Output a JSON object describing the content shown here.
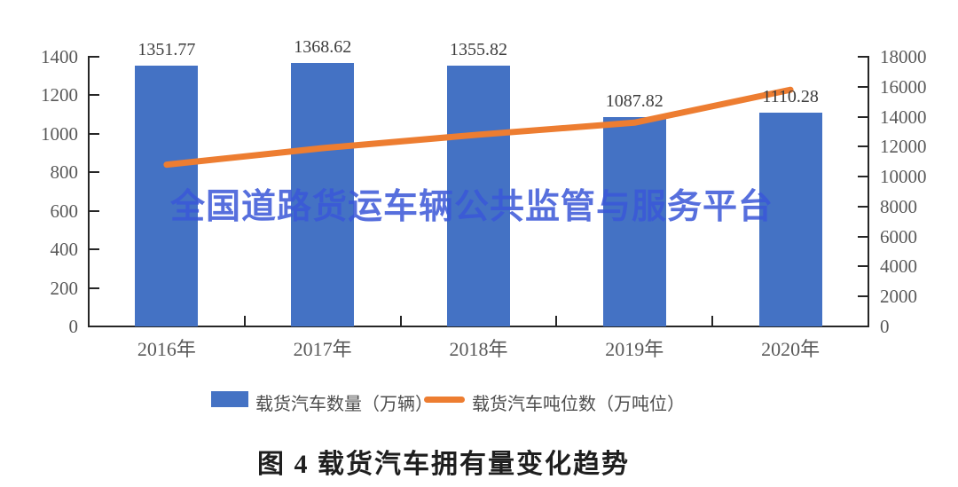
{
  "watermark": {
    "text": "全国道路货运车辆公共监管与服务平台",
    "color": "#3A57D8"
  },
  "caption": "图 4  载货汽车拥有量变化趋势",
  "legend": [
    {
      "label": "载货汽车数量（万辆）",
      "marker": "bar-swatch",
      "color": "#4472C4"
    },
    {
      "label": "载货汽车吨位数（万吨位）",
      "marker": "line-swatch",
      "color": "#ED7D31"
    }
  ],
  "colors": {
    "bar": "#4472C4",
    "line": "#ED7D31",
    "axis": "#262626",
    "axis_text": "#595959",
    "value_text": "#3d3d3d"
  },
  "chart_data": {
    "type": "bar",
    "subtype": "bar+line dual axis",
    "title": "图 4  载货汽车拥有量变化趋势",
    "categories": [
      "2016年",
      "2017年",
      "2018年",
      "2019年",
      "2020年"
    ],
    "series": [
      {
        "name": "载货汽车数量（万辆）",
        "type": "bar",
        "axis": "left",
        "color": "#4472C4",
        "values": [
          1351.77,
          1368.62,
          1355.82,
          1087.82,
          1110.28
        ],
        "data_labels": [
          "1351.77",
          "1368.62",
          "1355.82",
          "1087.82",
          "1110.28"
        ]
      },
      {
        "name": "载货汽车吨位数（万吨位）",
        "type": "line",
        "axis": "right",
        "color": "#ED7D31",
        "estimated": true,
        "values": [
          10800,
          11900,
          12800,
          13600,
          15800
        ]
      }
    ],
    "left_axis": {
      "min": 0,
      "max": 1400,
      "step": 200,
      "ticks": [
        0,
        200,
        400,
        600,
        800,
        1000,
        1200,
        1400
      ]
    },
    "right_axis": {
      "min": 0,
      "max": 18000,
      "step": 2000,
      "ticks": [
        0,
        2000,
        4000,
        6000,
        8000,
        10000,
        12000,
        14000,
        16000,
        18000
      ]
    },
    "grid": false,
    "legend_position": "bottom"
  }
}
